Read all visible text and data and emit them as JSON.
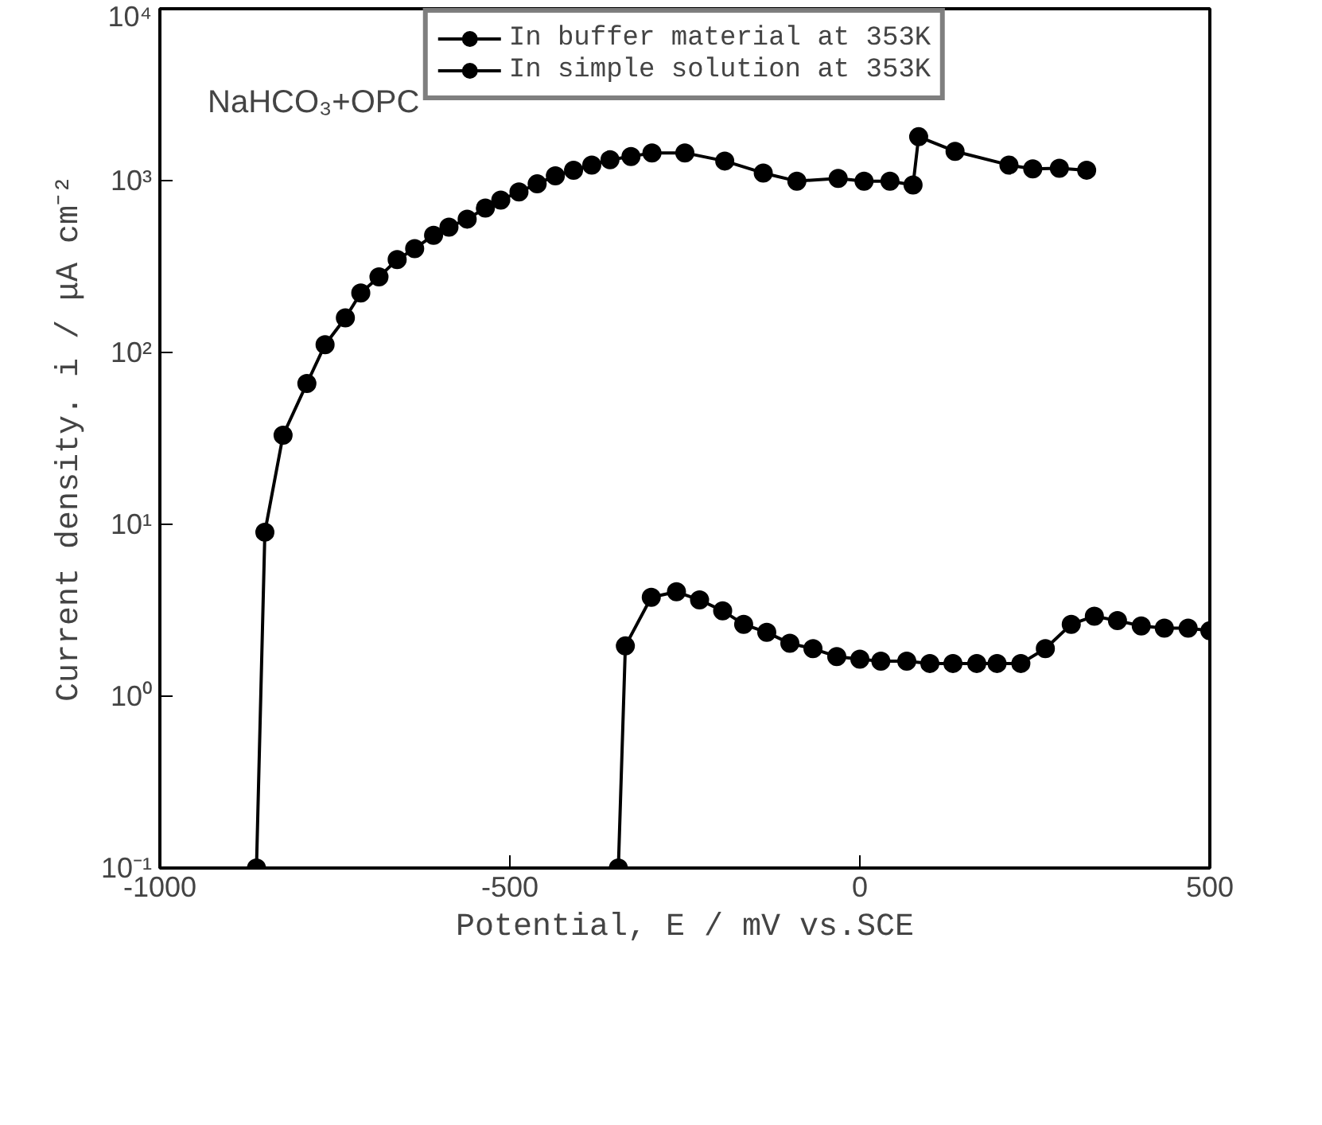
{
  "chart_data": {
    "type": "line",
    "xlabel": "Potential, E / mV vs.SCE",
    "ylabel": "Current density. i / μA cm⁻²",
    "annotations": [
      "NaHCO₃+OPC"
    ],
    "log": "y",
    "xlim": [
      -1000,
      500
    ],
    "ylim": [
      0.1,
      10000
    ],
    "xticks": [
      -1000,
      -500,
      0,
      500
    ],
    "yticks": [
      {
        "value": 0.1,
        "label": "10⁻¹"
      },
      {
        "value": 1,
        "label": "10⁰"
      },
      {
        "value": 10,
        "label": "10¹"
      },
      {
        "value": 100,
        "label": "10²"
      },
      {
        "value": 1000,
        "label": "10³"
      },
      {
        "value": 10000,
        "label": "10⁴"
      }
    ],
    "grid": false,
    "legend": "top",
    "line_style": "solid",
    "series": [
      {
        "name": "In buffer material at 353K",
        "color": "#000000",
        "marker": "circle",
        "x": [
          -862,
          -850,
          -824,
          -790,
          -764,
          -735,
          -713,
          -687,
          -661,
          -636,
          -609,
          -587,
          -561,
          -535,
          -513,
          -487,
          -461,
          -435,
          -409,
          -383,
          -357,
          -327,
          -297,
          -250,
          -193,
          -138,
          -90,
          -31,
          6,
          43,
          76,
          84,
          136,
          213,
          247,
          285,
          324
        ],
        "values": [
          0.1,
          9,
          33,
          66,
          111,
          159,
          222,
          275,
          347,
          402,
          481,
          536,
          597,
          692,
          771,
          859,
          957,
          1067,
          1148,
          1232,
          1322,
          1380,
          1450,
          1450,
          1300,
          1107,
          993,
          1029,
          993,
          993,
          944,
          1800,
          1480,
          1232,
          1170,
          1180,
          1150
        ]
      },
      {
        "name": "In simple solution at 353K",
        "color": "#000000",
        "marker": "circle",
        "x": [
          -345,
          -335,
          -298,
          -262,
          -229,
          -196,
          -166,
          -133,
          -100,
          -67,
          -33,
          0,
          30,
          67,
          100,
          133,
          167,
          196,
          230,
          265,
          302,
          335,
          368,
          402,
          435,
          469,
          500
        ],
        "values": [
          0.1,
          1.96,
          3.76,
          4.05,
          3.63,
          3.14,
          2.62,
          2.35,
          2.03,
          1.89,
          1.7,
          1.64,
          1.6,
          1.6,
          1.55,
          1.55,
          1.55,
          1.55,
          1.55,
          1.89,
          2.62,
          2.92,
          2.75,
          2.56,
          2.49,
          2.49,
          2.4
        ]
      }
    ]
  }
}
